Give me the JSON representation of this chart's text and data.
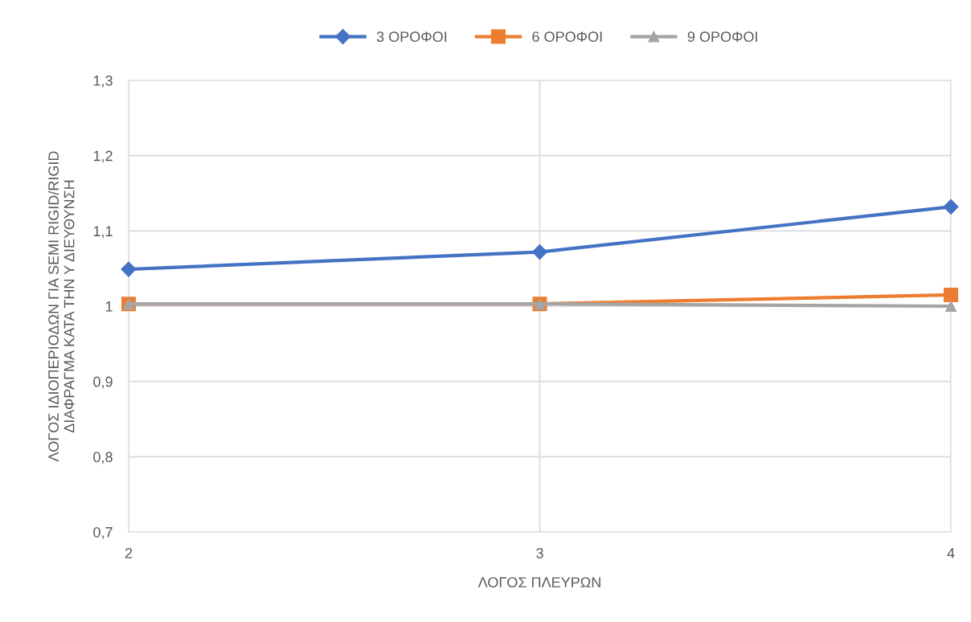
{
  "chart_data": {
    "type": "line",
    "xlabel": "ΛΟΓΟΣ ΠΛΕΥΡΩΝ",
    "ylabel": "ΛΟΓΟΣ ΙΔΙΟΠΕΡΙΟΔΩΝ ΓΙΑ SEMI RIGID/RIGID\nΔΙΑΦΡΑΓΜΑ ΚΑΤΑ ΤΗΝ Υ ΔΙΕΥΘΥΝΣΗ",
    "x": [
      2,
      3,
      4
    ],
    "series": [
      {
        "name": "3 ΟΡΟΦΟΙ",
        "color": "#4472c4",
        "marker": "diamond",
        "values": [
          1.049,
          1.072,
          1.132
        ]
      },
      {
        "name": "6 ΟΡΟΦΟΙ",
        "color": "#ed7d31",
        "marker": "square",
        "values": [
          1.003,
          1.003,
          1.015
        ]
      },
      {
        "name": "9 ΟΡΟΦΟΙ",
        "color": "#a5a5a5",
        "marker": "triangle",
        "values": [
          1.003,
          1.003,
          1.0
        ]
      }
    ],
    "xlim": [
      2,
      4
    ],
    "xticks": [
      2,
      3,
      4
    ],
    "ylim": [
      0.7,
      1.3
    ],
    "yticks": [
      {
        "value": 0.7,
        "label": "0,7"
      },
      {
        "value": 0.8,
        "label": "0,8"
      },
      {
        "value": 0.9,
        "label": "0,9"
      },
      {
        "value": 1,
        "label": "1"
      },
      {
        "value": 1.1,
        "label": "1,1"
      },
      {
        "value": 1.2,
        "label": "1,2"
      },
      {
        "value": 1.3,
        "label": "1,3"
      }
    ],
    "grid": true,
    "legend": "top",
    "line_style": "solid"
  }
}
